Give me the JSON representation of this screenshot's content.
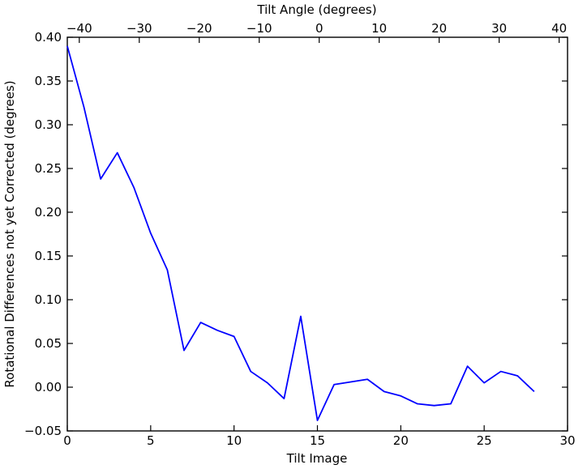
{
  "figure": {
    "background": "#ffffff",
    "frame_color": "#000000",
    "text_color": "#000000"
  },
  "chart_data": {
    "type": "line",
    "title": "",
    "top_xlabel": "Tilt Angle (degrees)",
    "xlabel": "Tilt Image",
    "ylabel": "Rotational Differences not yet Corrected (degrees)",
    "x": [
      0,
      1,
      2,
      3,
      4,
      5,
      6,
      7,
      8,
      9,
      10,
      11,
      12,
      13,
      14,
      15,
      16,
      17,
      18,
      19,
      20,
      21,
      22,
      23,
      24,
      25,
      26,
      27,
      28
    ],
    "y": [
      0.39,
      0.32,
      0.238,
      0.268,
      0.228,
      0.176,
      0.134,
      0.042,
      0.074,
      0.065,
      0.058,
      0.018,
      0.005,
      -0.013,
      0.081,
      -0.038,
      0.003,
      0.006,
      0.009,
      -0.005,
      -0.01,
      -0.019,
      -0.021,
      -0.019,
      0.024,
      0.005,
      0.018,
      0.013,
      -0.005
    ],
    "xlim": [
      0,
      30
    ],
    "ylim": [
      -0.05,
      0.4
    ],
    "x_ticks": [
      0,
      5,
      10,
      15,
      20,
      25,
      30
    ],
    "y_ticks": [
      -0.05,
      0.0,
      0.05,
      0.1,
      0.15,
      0.2,
      0.25,
      0.3,
      0.35,
      0.4
    ],
    "y_tick_decimals": 2,
    "top_xlim": [
      -42.0,
      41.4
    ],
    "top_x_ticks": [
      -40,
      -30,
      -20,
      -10,
      0,
      10,
      20,
      30,
      40
    ],
    "line_color": "#0000ff",
    "line_width": 1.8,
    "grid": false,
    "legend": null,
    "tick_direction": "in",
    "minus_sign": "−"
  }
}
